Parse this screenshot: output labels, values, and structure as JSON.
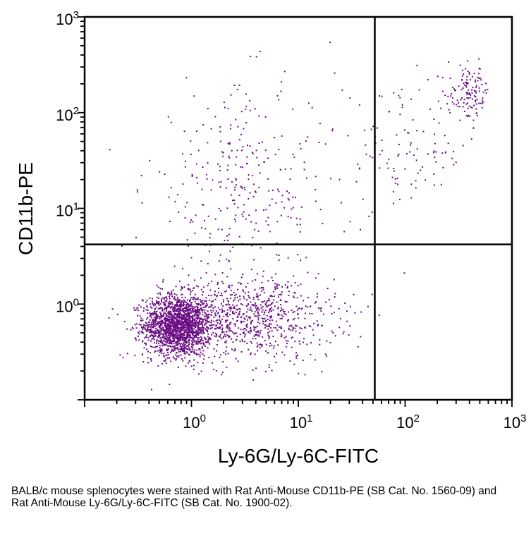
{
  "chart_data": {
    "type": "scatter",
    "title": "",
    "xlabel": "Ly-6G/Ly-6C-FITC",
    "ylabel": "CD11b-PE",
    "x_scale": "log",
    "y_scale": "log",
    "xlim": [
      0.1,
      1000
    ],
    "ylim": [
      0.1,
      1000
    ],
    "x_ticks": [
      {
        "value": 1,
        "label": "10",
        "exp": "0"
      },
      {
        "value": 10,
        "label": "10",
        "exp": "1"
      },
      {
        "value": 100,
        "label": "10",
        "exp": "2"
      },
      {
        "value": 1000,
        "label": "10",
        "exp": "3"
      }
    ],
    "y_ticks": [
      {
        "value": 1,
        "label": "10",
        "exp": "0"
      },
      {
        "value": 10,
        "label": "10",
        "exp": "1"
      },
      {
        "value": 100,
        "label": "10",
        "exp": "2"
      },
      {
        "value": 1000,
        "label": "10",
        "exp": "3"
      }
    ],
    "quadrant_gate": {
      "x": 52,
      "y": 4.2
    },
    "grid": false,
    "legend": "none",
    "point_color": "#6a0d83",
    "populations": [
      {
        "center": [
          0.75,
          0.6
        ],
        "spread_log": [
          0.16,
          0.16
        ],
        "count": 1800
      },
      {
        "center": [
          3.5,
          0.7
        ],
        "spread_log": [
          0.4,
          0.22
        ],
        "count": 800
      },
      {
        "center": [
          3.0,
          15
        ],
        "spread_log": [
          0.45,
          0.55
        ],
        "count": 320
      },
      {
        "center": [
          100,
          40
        ],
        "spread_log": [
          0.3,
          0.3
        ],
        "count": 110
      },
      {
        "center": [
          400,
          160
        ],
        "spread_log": [
          0.1,
          0.14
        ],
        "count": 130
      }
    ]
  },
  "caption": "BALB/c mouse splenocytes were stained with Rat Anti-Mouse CD11b-PE (SB Cat. No. 1560-09) and Rat Anti-Mouse Ly-6G/Ly-6C-FITC (SB Cat. No. 1900-02)."
}
